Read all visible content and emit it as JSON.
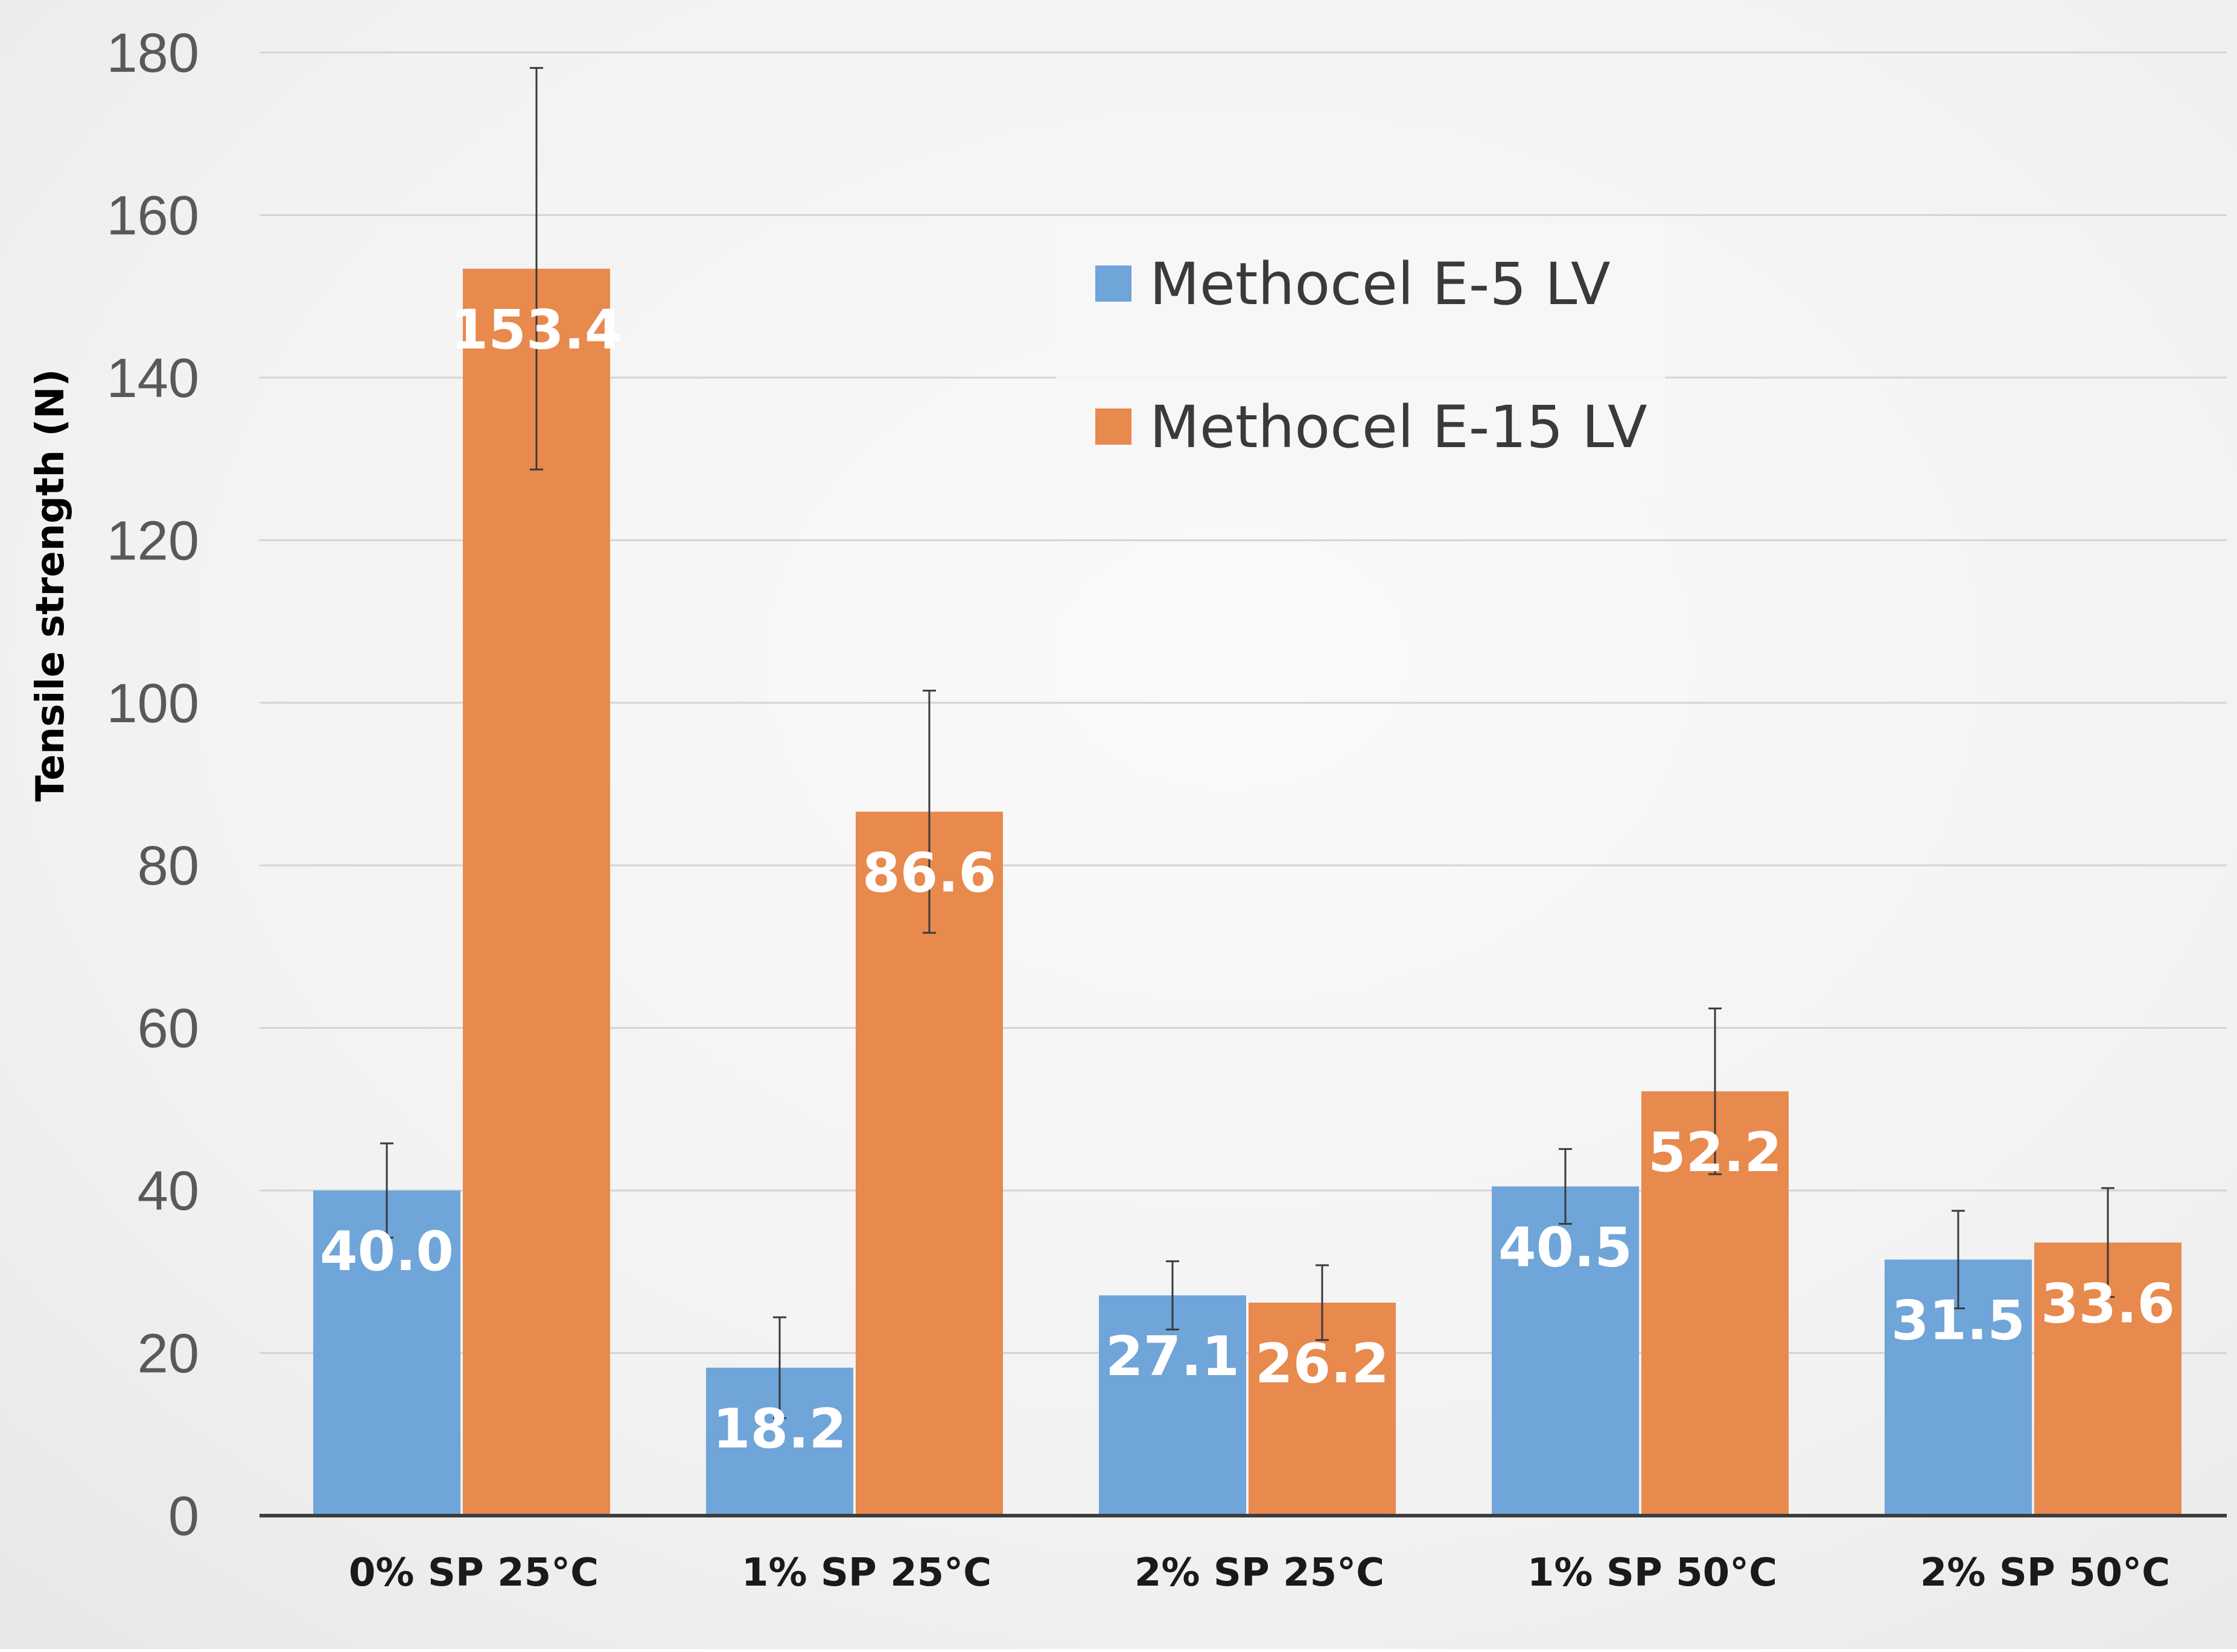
{
  "chart_data": {
    "type": "bar",
    "title": "",
    "xlabel": "",
    "ylabel": "Tensile strength (N)",
    "ylim": [
      0,
      180
    ],
    "yticks": [
      0,
      20,
      40,
      60,
      80,
      100,
      120,
      140,
      160,
      180
    ],
    "grid": true,
    "legend_position": "top-right",
    "categories": [
      "0% SP 25°C",
      "1% SP 25°C",
      "2% SP 25°C",
      "1% SP 50°C",
      "2% SP 50°C"
    ],
    "series": [
      {
        "name": "Methocel E-5 LV",
        "color": "#6fa5d8",
        "values": [
          40.0,
          18.2,
          27.1,
          40.5,
          31.5
        ],
        "labels": [
          "40.0",
          "18.2",
          "27.1",
          "40.5",
          "31.5"
        ],
        "error": [
          5.8,
          6.2,
          4.2,
          4.6,
          6.0
        ]
      },
      {
        "name": "Methocel E-15 LV",
        "color": "#e8894d",
        "values": [
          153.4,
          86.6,
          26.2,
          52.2,
          33.6
        ],
        "labels": [
          "153.4",
          "86.6",
          "26.2",
          "52.2",
          "33.6"
        ],
        "error": [
          24.7,
          14.9,
          4.6,
          10.2,
          6.7
        ]
      }
    ]
  }
}
